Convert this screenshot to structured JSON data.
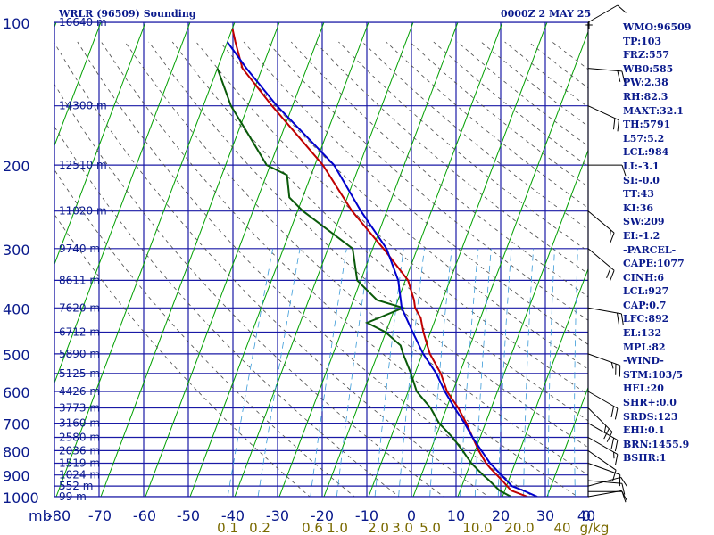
{
  "header": {
    "station": "WRLR (96509) Sounding",
    "time": "0000Z  2 MAY 25"
  },
  "indices": [
    "WMO:96509",
    "TP:103",
    "FRZ:557",
    "WB0:585",
    "PW:2.38",
    "RH:82.3",
    "MAXT:32.1",
    "TH:5791",
    "L57:5.2",
    "LCL:984",
    "LI:-3.1",
    "SI:-0.0",
    "TT:43",
    "KI:36",
    "SW:209",
    "EI:-1.2",
    "-PARCEL-",
    "CAPE:1077",
    "CINH:6",
    "LCL:927",
    "CAP:0.7",
    "LFC:892",
    "EL:132",
    "MPL:82",
    "-WIND-",
    "STM:103/5",
    "HEL:20",
    "SHR+:0.0",
    "SRDS:123",
    "EHI:0.1",
    "BRN:1455.9",
    "BSHR:1"
  ],
  "colors": {
    "grid": "#1a1aa6",
    "isotherm": "#00a000",
    "dry_adiabat": "#4a4a4a",
    "mixing_ratio": "#3a9ad8",
    "temperature": "#c00000",
    "dewpoint": "#0a5a0a",
    "parcel": "#0000cc",
    "axis_text": "#0a1a8c",
    "wind": "#000000"
  },
  "chart_data": {
    "type": "line",
    "title": "WRLR (96509) Sounding",
    "subtitle": "0000Z  2 MAY 25",
    "x_unit_label": "mb",
    "y_scale": "log",
    "ylim": [
      1000,
      100
    ],
    "xlim": [
      -80,
      0
    ],
    "x_ticks": [
      "-80",
      "-70",
      "-60",
      "-50",
      "-40",
      "-30",
      "-20",
      "-10",
      "0",
      "10",
      "20",
      "30",
      "40",
      "0"
    ],
    "y_ticks": [
      "100",
      "200",
      "300",
      "400",
      "500",
      "600",
      "700",
      "800",
      "900",
      "1000"
    ],
    "height_labels": [
      {
        "p": 100,
        "label": "16640 m"
      },
      {
        "p": 150,
        "label": "14300 m"
      },
      {
        "p": 200,
        "label": "12510 m"
      },
      {
        "p": 250,
        "label": "11020 m"
      },
      {
        "p": 300,
        "label": "9740 m"
      },
      {
        "p": 350,
        "label": "8611 m"
      },
      {
        "p": 400,
        "label": "7620 m"
      },
      {
        "p": 450,
        "label": "6712 m"
      },
      {
        "p": 500,
        "label": "5890 m"
      },
      {
        "p": 550,
        "label": "5125 m"
      },
      {
        "p": 600,
        "label": "4426 m"
      },
      {
        "p": 650,
        "label": "3773 m"
      },
      {
        "p": 700,
        "label": "3160 m"
      },
      {
        "p": 750,
        "label": "2580 m"
      },
      {
        "p": 800,
        "label": "2036 m"
      },
      {
        "p": 850,
        "label": "1519 m"
      },
      {
        "p": 900,
        "label": "1024 m"
      },
      {
        "p": 950,
        "label": "552 m"
      },
      {
        "p": 1000,
        "label": "99 m"
      }
    ],
    "mixing_ratio_labels": [
      "0.1",
      "0.2",
      "0.6",
      "1.0",
      "2.0",
      "3.0",
      "5.0",
      "10.0",
      "20.0",
      "40",
      "g/kg"
    ],
    "series": [
      {
        "key": "temperature",
        "values": [
          [
            1000,
            25.6
          ],
          [
            970,
            21.4
          ],
          [
            925,
            18.6
          ],
          [
            870,
            14.8
          ],
          [
            850,
            13.5
          ],
          [
            800,
            10.8
          ],
          [
            750,
            8.3
          ],
          [
            700,
            5.7
          ],
          [
            650,
            2.6
          ],
          [
            600,
            -1.3
          ],
          [
            550,
            -4.2
          ],
          [
            500,
            -8.3
          ],
          [
            480,
            -9.6
          ],
          [
            450,
            -11.6
          ],
          [
            420,
            -13.4
          ],
          [
            400,
            -15.5
          ],
          [
            385,
            -16.4
          ],
          [
            350,
            -19.4
          ],
          [
            300,
            -27.6
          ],
          [
            250,
            -37.8
          ],
          [
            200,
            -48.2
          ],
          [
            175,
            -55.8
          ],
          [
            150,
            -64.6
          ],
          [
            125,
            -74.4
          ],
          [
            110,
            -78.2
          ],
          [
            103,
            -80.0
          ]
        ]
      },
      {
        "key": "dewpoint",
        "values": [
          [
            1000,
            21.9
          ],
          [
            970,
            18.8
          ],
          [
            925,
            15.7
          ],
          [
            900,
            13.8
          ],
          [
            850,
            10.2
          ],
          [
            800,
            7.2
          ],
          [
            750,
            3.8
          ],
          [
            700,
            -0.4
          ],
          [
            650,
            -3.6
          ],
          [
            600,
            -8.1
          ],
          [
            550,
            -10.9
          ],
          [
            500,
            -14.3
          ],
          [
            480,
            -15.6
          ],
          [
            450,
            -20.1
          ],
          [
            430,
            -25.0
          ],
          [
            400,
            -18.2
          ],
          [
            385,
            -24.7
          ],
          [
            350,
            -30.8
          ],
          [
            300,
            -34.5
          ],
          [
            250,
            -48.8
          ],
          [
            234,
            -53.0
          ],
          [
            210,
            -55.4
          ],
          [
            200,
            -60.8
          ],
          [
            175,
            -66.8
          ],
          [
            150,
            -73.8
          ],
          [
            125,
            -80.0
          ]
        ]
      },
      {
        "key": "parcel",
        "values": [
          [
            1000,
            27.8
          ],
          [
            970,
            24.1
          ],
          [
            950,
            21.2
          ],
          [
            900,
            17.9
          ],
          [
            850,
            14.4
          ],
          [
            800,
            11.4
          ],
          [
            750,
            8.3
          ],
          [
            700,
            5.3
          ],
          [
            650,
            1.8
          ],
          [
            600,
            -1.8
          ],
          [
            550,
            -5.2
          ],
          [
            500,
            -9.8
          ],
          [
            450,
            -14.0
          ],
          [
            400,
            -18.5
          ],
          [
            350,
            -21.6
          ],
          [
            300,
            -26.9
          ],
          [
            250,
            -35.8
          ],
          [
            200,
            -45.7
          ],
          [
            150,
            -63.5
          ],
          [
            125,
            -73.5
          ],
          [
            110,
            -80.0
          ]
        ]
      }
    ],
    "winds": [
      {
        "p": 1000,
        "dir": 80,
        "spd": 10
      },
      {
        "p": 975,
        "dir": 90,
        "spd": 10
      },
      {
        "p": 950,
        "dir": 75,
        "spd": 10
      },
      {
        "p": 925,
        "dir": 95,
        "spd": 10
      },
      {
        "p": 850,
        "dir": 110,
        "spd": 10
      },
      {
        "p": 800,
        "dir": 125,
        "spd": 10
      },
      {
        "p": 750,
        "dir": 120,
        "spd": 15
      },
      {
        "p": 700,
        "dir": 120,
        "spd": 20
      },
      {
        "p": 650,
        "dir": 135,
        "spd": 25
      },
      {
        "p": 600,
        "dir": 120,
        "spd": 20
      },
      {
        "p": 500,
        "dir": 110,
        "spd": 25
      },
      {
        "p": 400,
        "dir": 100,
        "spd": 20
      },
      {
        "p": 300,
        "dir": 130,
        "spd": 20
      },
      {
        "p": 250,
        "dir": 130,
        "spd": 15
      },
      {
        "p": 200,
        "dir": 90,
        "spd": 10
      },
      {
        "p": 150,
        "dir": 115,
        "spd": 20
      },
      {
        "p": 125,
        "dir": 95,
        "spd": 20
      },
      {
        "p": 100,
        "dir": 60,
        "spd": 10
      }
    ]
  }
}
